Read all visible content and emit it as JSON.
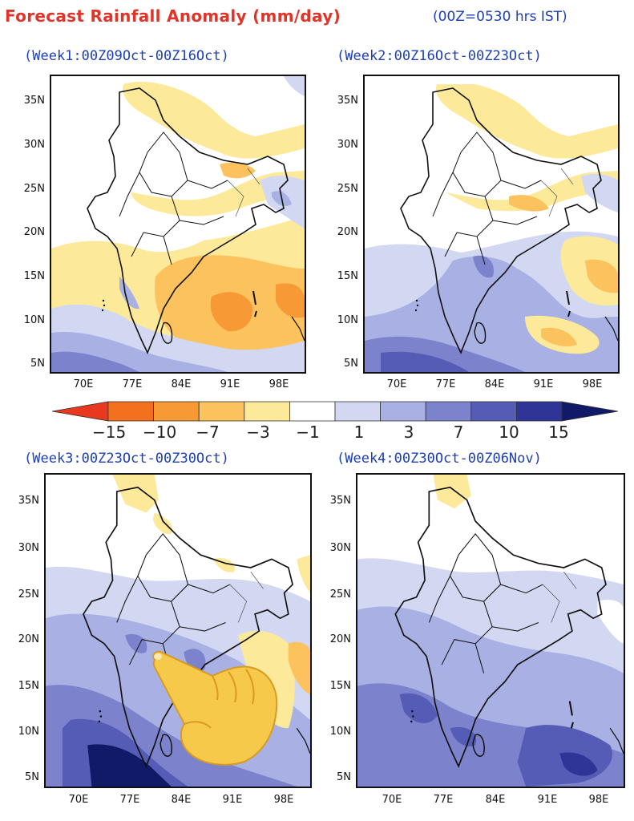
{
  "header": {
    "title": "Forecast Rainfall Anomaly (mm/day)",
    "note": "(00Z=0530 hrs IST)"
  },
  "panels": [
    {
      "title": "(Week1:00Z09Oct-00Z16Oct)"
    },
    {
      "title": "(Week2:00Z16Oct-00Z23Oct)"
    },
    {
      "title": "(Week3:00Z23Oct-00Z30Oct)"
    },
    {
      "title": "(Week4:00Z30Oct-00Z06Nov)"
    }
  ],
  "axes": {
    "lat_labels": [
      "35N",
      "30N",
      "25N",
      "20N",
      "15N",
      "10N",
      "5N"
    ],
    "lon_labels": [
      "70E",
      "77E",
      "84E",
      "91E",
      "98E"
    ]
  },
  "colorbar": {
    "labels": [
      "−15",
      "−10",
      "−7",
      "−3",
      "−1",
      "1",
      "3",
      "7",
      "10",
      "15"
    ],
    "colors": [
      "#e8391e",
      "#f2701e",
      "#f79a35",
      "#fbc25d",
      "#fde99a",
      "#ffffff",
      "#d3d8f2",
      "#a9b1e4",
      "#7c83cc",
      "#555cb6",
      "#2f3596",
      "#101a66"
    ]
  },
  "colors": {
    "title_red": "#e0342a",
    "label_blue": "#1d3fb3"
  },
  "overlay": {
    "icon": "pointing-hand-icon"
  }
}
